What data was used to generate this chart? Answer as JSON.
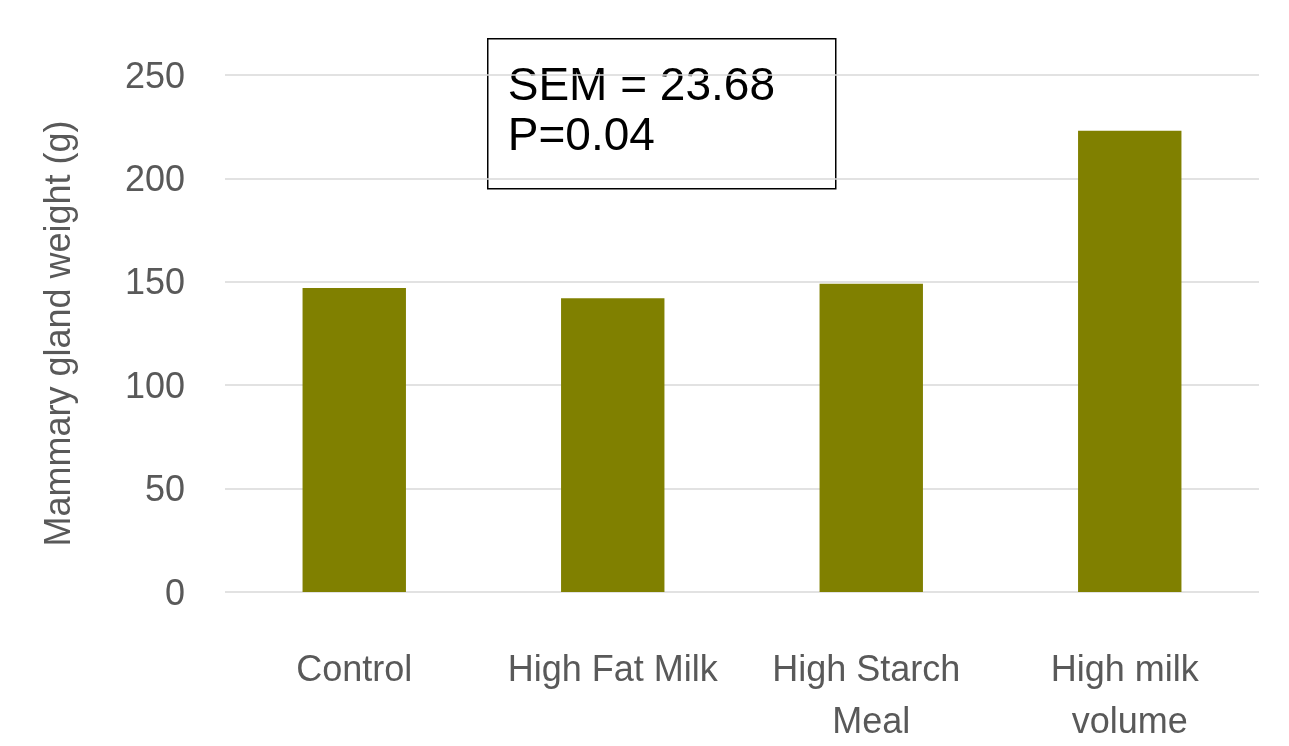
{
  "chart_data": {
    "type": "bar",
    "ylabel": "Mammary gland weight (g)",
    "categories": [
      "Control",
      "High Fat Milk",
      "High Starch Meal",
      "High milk volume"
    ],
    "values": [
      147,
      142,
      149,
      223
    ],
    "color": "#808000",
    "ylim": [
      0,
      250
    ],
    "yticks": [
      0,
      50,
      100,
      150,
      200,
      250
    ],
    "grid": "y",
    "annotations": [
      "SEM = 23.68",
      "P=0.04"
    ]
  }
}
